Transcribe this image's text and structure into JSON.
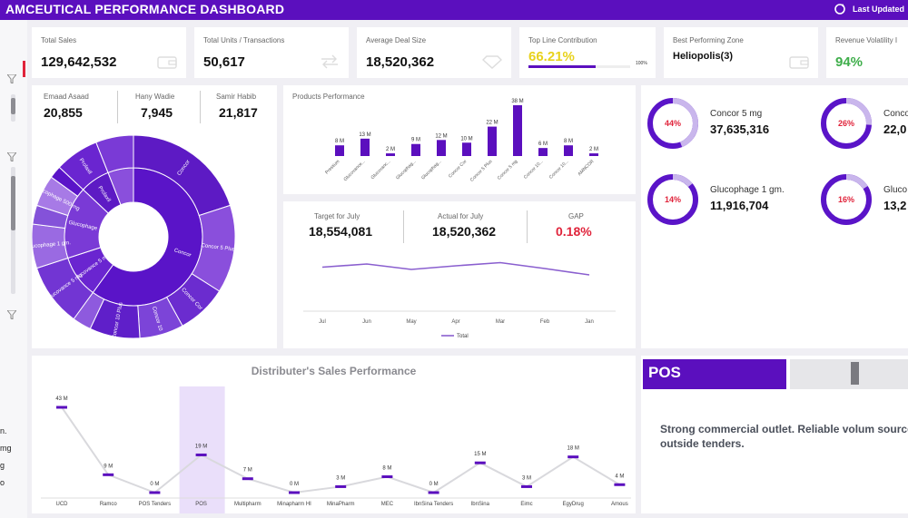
{
  "header": {
    "title": "AMCEUTICAL PERFORMANCE DASHBOARD",
    "last_updated_label": "Last Updated"
  },
  "left_rail": {
    "partial_texts": [
      "n.",
      "mg",
      "g",
      "o"
    ]
  },
  "kpis": [
    {
      "label": "Total Sales",
      "value": "129,642,532",
      "icon": "wallet-icon"
    },
    {
      "label": "Total Units / Transactions",
      "value": "50,617",
      "icon": "swap-arrows-icon"
    },
    {
      "label": "Average Deal Size",
      "value": "18,520,362",
      "icon": "diamond-icon"
    },
    {
      "label": "Top Line Contribution",
      "value": "66.21%",
      "progress": 0.6621,
      "progress_max_label": "100%"
    },
    {
      "label": "Best Performing Zone",
      "value": "Heliopolis(3)",
      "icon": "wallet-icon"
    },
    {
      "label": "Revenue Volatility I",
      "value": "94%"
    }
  ],
  "reps": [
    {
      "name": "Emaad Asaad",
      "value": "20,855"
    },
    {
      "name": "Hany Wadie",
      "value": "7,945"
    },
    {
      "name": "Samir Habib",
      "value": "21,817"
    }
  ],
  "sunburst": {
    "inner": [
      {
        "label": "Concor",
        "value": 60
      },
      {
        "label": "Glucovance 5 mg",
        "value": 10
      },
      {
        "label": "Glucophage",
        "value": 17
      },
      {
        "label": "Prolaxil",
        "value": 7
      },
      {
        "label": "",
        "value": 6
      }
    ],
    "outer": [
      {
        "label": "Concor",
        "value": 20
      },
      {
        "label": "Concor 5 Plus",
        "value": 14
      },
      {
        "label": "Concor Cor",
        "value": 8
      },
      {
        "label": "Concor 10",
        "value": 7
      },
      {
        "label": "Concor 10 Plus",
        "value": 8
      },
      {
        "label": "",
        "value": 3
      },
      {
        "label": "Glucovance 5 mg",
        "value": 10
      },
      {
        "label": "Glucophage 1 gm.",
        "value": 7
      },
      {
        "label": "",
        "value": 3
      },
      {
        "label": "Glucophage 500 mg",
        "value": 5
      },
      {
        "label": "",
        "value": 2
      },
      {
        "label": "Prolaxil",
        "value": 7
      },
      {
        "label": "",
        "value": 6
      }
    ],
    "colors": [
      "#5a14c8",
      "#6a25d0",
      "#7a3ad6",
      "#5d1ac4",
      "#8a4fdc",
      "#6b2ccf",
      "#7c44d8",
      "#5f1fc9",
      "#8e5ade",
      "#7235d3",
      "#9a6ae2",
      "#8452d9",
      "#a77ae6"
    ]
  },
  "products_performance": {
    "title": "Products Performance",
    "chart_data": {
      "type": "bar",
      "categories": [
        "Prestium",
        "Glucovance...",
        "Glucovanc...",
        "Glucophag...",
        "Glucophag...",
        "Concor Cor",
        "Concor 5 Plus",
        "Concor 5 mg",
        "Concor 10...",
        "Concor 10...",
        "AMNCOR"
      ],
      "values": [
        8,
        13,
        2,
        9,
        12,
        10,
        22,
        38,
        6,
        8,
        2
      ],
      "data_labels": [
        "8 M",
        "13 M",
        "2 M",
        "9 M",
        "12 M",
        "10 M",
        "22 M",
        "38 M",
        "6 M",
        "8 M",
        "2 M"
      ],
      "ylim": [
        0,
        38
      ]
    }
  },
  "targets": {
    "items": [
      {
        "label": "Target for July",
        "value": "18,554,081"
      },
      {
        "label": "Actual for July",
        "value": "18,520,362"
      },
      {
        "label": "GAP",
        "value": "0.18%"
      }
    ],
    "chart_data": {
      "type": "line",
      "x": [
        "Jul",
        "Jun",
        "May",
        "Apr",
        "Mar",
        "Feb",
        "Jan"
      ],
      "series": [
        {
          "name": "Total",
          "values": [
            0.55,
            0.62,
            0.5,
            0.58,
            0.65,
            0.52,
            0.38
          ]
        }
      ],
      "ylim": [
        0,
        1
      ]
    }
  },
  "products_donuts": [
    {
      "name": "Concor 5 mg",
      "value": "37,635,316",
      "percent_label": "44%",
      "fraction": 0.44
    },
    {
      "name": "Concor",
      "value": "22,0",
      "percent_label": "26%",
      "fraction": 0.26
    },
    {
      "name": "Glucophage 1 gm.",
      "value": "11,916,704",
      "percent_label": "14%",
      "fraction": 0.14
    },
    {
      "name": "Gluco",
      "value": "13,2",
      "percent_label": "16%",
      "fraction": 0.16
    }
  ],
  "distributors": {
    "title": "Distributer's Sales Performance",
    "highlight": "POS",
    "chart_data": {
      "type": "line",
      "x": [
        "UCD",
        "Ramco",
        "POS Tenders",
        "POS",
        "Multipharm",
        "Minapharm HI",
        "MinaPharm",
        "MEC",
        "IbnSina Tenders",
        "IbnSina",
        "Eimc",
        "EgyDrug",
        "Amous"
      ],
      "values": [
        43,
        9,
        0,
        19,
        7,
        0,
        3,
        8,
        0,
        15,
        3,
        18,
        4
      ],
      "data_labels": [
        "43 M",
        "9 M",
        "0 M",
        "19 M",
        "7 M",
        "0 M",
        "3 M",
        "8 M",
        "0 M",
        "15 M",
        "3 M",
        "18 M",
        "4 M"
      ],
      "ylim": [
        0,
        43
      ]
    }
  },
  "pos_panel": {
    "label": "POS",
    "description": "Strong commercial outlet. Reliable volum source outside tenders."
  },
  "colors": {
    "accent": "#5b0fbe",
    "gap_red": "#e0243b",
    "volatility_green": "#3fae4b",
    "contribution_yellow": "#e8d21c"
  }
}
